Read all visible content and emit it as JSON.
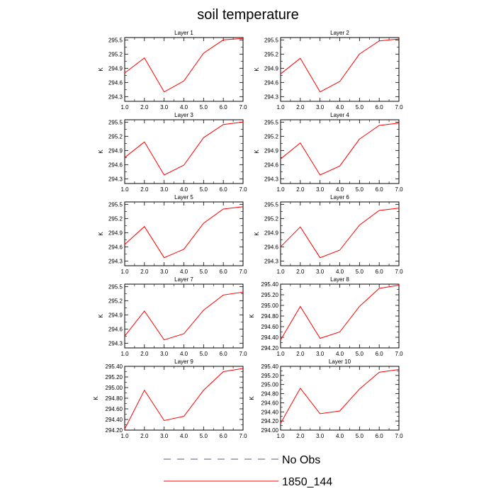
{
  "figure_title": "soil temperature",
  "chart_data": [
    {
      "type": "line",
      "title": "Layer 1",
      "ylabel": "K",
      "xlim": [
        1.0,
        7.0
      ],
      "ylim": [
        294.2,
        295.55
      ],
      "xticks": [
        "1.0",
        "2.0",
        "3.0",
        "4.0",
        "5.0",
        "6.0",
        "7.0"
      ],
      "yticks": [
        {
          "v": 294.3,
          "l": "294.3"
        },
        {
          "v": 294.6,
          "l": "294.6"
        },
        {
          "v": 294.9,
          "l": "294.9"
        },
        {
          "v": 295.2,
          "l": "295.2"
        },
        {
          "v": 295.5,
          "l": "295.5"
        }
      ],
      "series": [
        {
          "name": "1850_144",
          "color": "#ff0000",
          "x": [
            1,
            2,
            3,
            4,
            5,
            6,
            7
          ],
          "y": [
            294.8,
            295.12,
            294.4,
            294.63,
            295.22,
            295.5,
            295.53
          ]
        }
      ]
    },
    {
      "type": "line",
      "title": "Layer 2",
      "ylabel": "K",
      "xlim": [
        1.0,
        7.0
      ],
      "ylim": [
        294.2,
        295.55
      ],
      "xticks": [
        "1.0",
        "2.0",
        "3.0",
        "4.0",
        "5.0",
        "6.0",
        "7.0"
      ],
      "yticks": [
        {
          "v": 294.3,
          "l": "294.3"
        },
        {
          "v": 294.6,
          "l": "294.6"
        },
        {
          "v": 294.9,
          "l": "294.9"
        },
        {
          "v": 295.2,
          "l": "295.2"
        },
        {
          "v": 295.5,
          "l": "295.5"
        }
      ],
      "series": [
        {
          "name": "1850_144",
          "color": "#ff0000",
          "x": [
            1,
            2,
            3,
            4,
            5,
            6,
            7
          ],
          "y": [
            294.78,
            295.11,
            294.4,
            294.62,
            295.2,
            295.48,
            295.52
          ]
        }
      ]
    },
    {
      "type": "line",
      "title": "Layer 3",
      "ylabel": "K",
      "xlim": [
        1.0,
        7.0
      ],
      "ylim": [
        294.2,
        295.55
      ],
      "xticks": [
        "1.0",
        "2.0",
        "3.0",
        "4.0",
        "5.0",
        "6.0",
        "7.0"
      ],
      "yticks": [
        {
          "v": 294.3,
          "l": "294.3"
        },
        {
          "v": 294.6,
          "l": "294.6"
        },
        {
          "v": 294.9,
          "l": "294.9"
        },
        {
          "v": 295.2,
          "l": "295.2"
        },
        {
          "v": 295.5,
          "l": "295.5"
        }
      ],
      "series": [
        {
          "name": "1850_144",
          "color": "#ff0000",
          "x": [
            1,
            2,
            3,
            4,
            5,
            6,
            7
          ],
          "y": [
            294.75,
            295.08,
            294.38,
            294.59,
            295.17,
            295.45,
            295.5
          ]
        }
      ]
    },
    {
      "type": "line",
      "title": "Layer 4",
      "ylabel": "K",
      "xlim": [
        1.0,
        7.0
      ],
      "ylim": [
        294.2,
        295.55
      ],
      "xticks": [
        "1.0",
        "2.0",
        "3.0",
        "4.0",
        "5.0",
        "6.0",
        "7.0"
      ],
      "yticks": [
        {
          "v": 294.3,
          "l": "294.3"
        },
        {
          "v": 294.6,
          "l": "294.6"
        },
        {
          "v": 294.9,
          "l": "294.9"
        },
        {
          "v": 295.2,
          "l": "295.2"
        },
        {
          "v": 295.5,
          "l": "295.5"
        }
      ],
      "series": [
        {
          "name": "1850_144",
          "color": "#ff0000",
          "x": [
            1,
            2,
            3,
            4,
            5,
            6,
            7
          ],
          "y": [
            294.72,
            295.06,
            294.38,
            294.57,
            295.14,
            295.43,
            295.48
          ]
        }
      ]
    },
    {
      "type": "line",
      "title": "Layer 5",
      "ylabel": "K",
      "xlim": [
        1.0,
        7.0
      ],
      "ylim": [
        294.2,
        295.55
      ],
      "xticks": [
        "1.0",
        "2.0",
        "3.0",
        "4.0",
        "5.0",
        "6.0",
        "7.0"
      ],
      "yticks": [
        {
          "v": 294.3,
          "l": "294.3"
        },
        {
          "v": 294.6,
          "l": "294.6"
        },
        {
          "v": 294.9,
          "l": "294.9"
        },
        {
          "v": 295.2,
          "l": "295.2"
        },
        {
          "v": 295.5,
          "l": "295.5"
        }
      ],
      "series": [
        {
          "name": "1850_144",
          "color": "#ff0000",
          "x": [
            1,
            2,
            3,
            4,
            5,
            6,
            7
          ],
          "y": [
            294.65,
            295.03,
            294.37,
            294.55,
            295.1,
            295.4,
            295.45
          ]
        }
      ]
    },
    {
      "type": "line",
      "title": "Layer 6",
      "ylabel": "K",
      "xlim": [
        1.0,
        7.0
      ],
      "ylim": [
        294.2,
        295.55
      ],
      "xticks": [
        "1.0",
        "2.0",
        "3.0",
        "4.0",
        "5.0",
        "6.0",
        "7.0"
      ],
      "yticks": [
        {
          "v": 294.3,
          "l": "294.3"
        },
        {
          "v": 294.6,
          "l": "294.6"
        },
        {
          "v": 294.9,
          "l": "294.9"
        },
        {
          "v": 295.2,
          "l": "295.2"
        },
        {
          "v": 295.5,
          "l": "295.5"
        }
      ],
      "series": [
        {
          "name": "1850_144",
          "color": "#ff0000",
          "x": [
            1,
            2,
            3,
            4,
            5,
            6,
            7
          ],
          "y": [
            294.6,
            295.02,
            294.37,
            294.53,
            295.06,
            295.37,
            295.42
          ]
        }
      ]
    },
    {
      "type": "line",
      "title": "Layer 7",
      "ylabel": "K",
      "xlim": [
        1.0,
        7.0
      ],
      "ylim": [
        294.2,
        295.55
      ],
      "xticks": [
        "1.0",
        "2.0",
        "3.0",
        "4.0",
        "5.0",
        "6.0",
        "7.0"
      ],
      "yticks": [
        {
          "v": 294.3,
          "l": "294.3"
        },
        {
          "v": 294.6,
          "l": "294.6"
        },
        {
          "v": 294.9,
          "l": "294.9"
        },
        {
          "v": 295.2,
          "l": "295.2"
        },
        {
          "v": 295.5,
          "l": "295.5"
        }
      ],
      "series": [
        {
          "name": "1850_144",
          "color": "#ff0000",
          "x": [
            1,
            2,
            3,
            4,
            5,
            6,
            7
          ],
          "y": [
            294.45,
            294.98,
            294.37,
            294.5,
            295.0,
            295.32,
            295.38
          ]
        }
      ]
    },
    {
      "type": "line",
      "title": "Layer 8",
      "ylabel": "K",
      "xlim": [
        1.0,
        7.0
      ],
      "ylim": [
        294.2,
        295.4
      ],
      "xticks": [
        "1.0",
        "2.0",
        "3.0",
        "4.0",
        "5.0",
        "6.0",
        "7.0"
      ],
      "yticks": [
        {
          "v": 294.2,
          "l": "294.20"
        },
        {
          "v": 294.4,
          "l": "294.40"
        },
        {
          "v": 294.6,
          "l": "294.60"
        },
        {
          "v": 294.8,
          "l": "294.80"
        },
        {
          "v": 295.0,
          "l": "295.00"
        },
        {
          "v": 295.2,
          "l": "295.20"
        },
        {
          "v": 295.4,
          "l": "295.40"
        }
      ],
      "series": [
        {
          "name": "1850_144",
          "color": "#ff0000",
          "x": [
            1,
            2,
            3,
            4,
            5,
            6,
            7
          ],
          "y": [
            294.35,
            294.98,
            294.38,
            294.5,
            294.98,
            295.32,
            295.38
          ]
        }
      ]
    },
    {
      "type": "line",
      "title": "Layer 9",
      "ylabel": "K",
      "xlim": [
        1.0,
        7.0
      ],
      "ylim": [
        294.2,
        295.4
      ],
      "xticks": [
        "1.0",
        "2.0",
        "3.0",
        "4.0",
        "5.0",
        "6.0",
        "7.0"
      ],
      "yticks": [
        {
          "v": 294.2,
          "l": "294.20"
        },
        {
          "v": 294.4,
          "l": "294.40"
        },
        {
          "v": 294.6,
          "l": "294.60"
        },
        {
          "v": 294.8,
          "l": "294.80"
        },
        {
          "v": 295.0,
          "l": "295.00"
        },
        {
          "v": 295.2,
          "l": "295.20"
        },
        {
          "v": 295.4,
          "l": "295.40"
        }
      ],
      "series": [
        {
          "name": "1850_144",
          "color": "#ff0000",
          "x": [
            1,
            2,
            3,
            4,
            5,
            6,
            7
          ],
          "y": [
            294.22,
            294.95,
            294.38,
            294.46,
            294.95,
            295.3,
            295.36
          ]
        }
      ]
    },
    {
      "type": "line",
      "title": "Layer 10",
      "ylabel": "K",
      "xlim": [
        1.0,
        7.0
      ],
      "ylim": [
        294.0,
        295.4
      ],
      "xticks": [
        "1.0",
        "2.0",
        "3.0",
        "4.0",
        "5.0",
        "6.0",
        "7.0"
      ],
      "yticks": [
        {
          "v": 294.0,
          "l": "294.00"
        },
        {
          "v": 294.2,
          "l": "294.20"
        },
        {
          "v": 294.4,
          "l": "294.40"
        },
        {
          "v": 294.6,
          "l": "294.60"
        },
        {
          "v": 294.8,
          "l": "294.80"
        },
        {
          "v": 295.0,
          "l": "295.00"
        },
        {
          "v": 295.2,
          "l": "295.20"
        },
        {
          "v": 295.4,
          "l": "295.40"
        }
      ],
      "series": [
        {
          "name": "1850_144",
          "color": "#ff0000",
          "x": [
            1,
            2,
            3,
            4,
            5,
            6,
            7
          ],
          "y": [
            294.15,
            294.92,
            294.36,
            294.42,
            294.9,
            295.27,
            295.33
          ]
        }
      ]
    }
  ],
  "legend": {
    "placement": "bottom-center",
    "entries": [
      {
        "label": "No Obs",
        "color": "#5a5a7a",
        "style": "dashed"
      },
      {
        "label": "1850_144",
        "color": "#ff0000",
        "style": "solid"
      }
    ]
  }
}
